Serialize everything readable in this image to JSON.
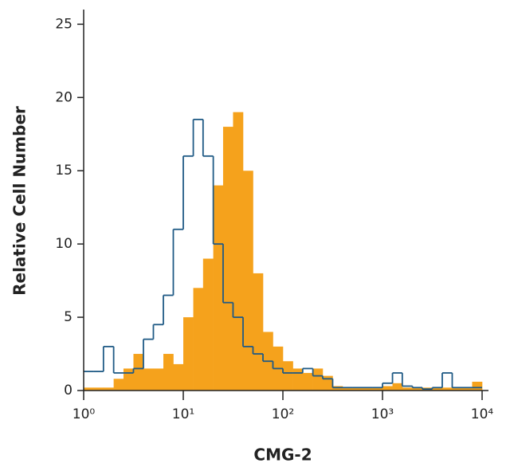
{
  "chart_data": {
    "type": "histogram",
    "x_label": "CMG-2",
    "y_label": "Relative Cell Number",
    "x_log": true,
    "xlim": [
      1,
      10000
    ],
    "ylim": [
      0,
      26
    ],
    "xticks": [
      {
        "value": 1,
        "label": "10⁰"
      },
      {
        "value": 10,
        "label": "10¹"
      },
      {
        "value": 100,
        "label": "10²"
      },
      {
        "value": 1000,
        "label": "10³"
      },
      {
        "value": 10000,
        "label": "10⁴"
      }
    ],
    "yticks": [
      0,
      5,
      10,
      15,
      20,
      25
    ],
    "bins": [
      1,
      1.26,
      1.58,
      2,
      2.51,
      3.16,
      3.98,
      5.01,
      6.31,
      7.94,
      10,
      12.6,
      15.8,
      20,
      25.1,
      31.6,
      39.8,
      50.1,
      63.1,
      79.4,
      100,
      126,
      158,
      200,
      251,
      316,
      398,
      501,
      631,
      794,
      1000,
      1260,
      1580,
      2000,
      2510,
      3160,
      3980,
      5010,
      6310,
      7940,
      10000
    ],
    "series": [
      {
        "color": "#f5a21c",
        "style": "filled",
        "values": [
          0.2,
          0.2,
          0.2,
          0.8,
          1.5,
          2.5,
          1.5,
          1.5,
          2.5,
          1.8,
          5,
          7,
          9,
          14,
          18,
          19,
          15,
          8,
          4,
          3,
          2,
          1.5,
          1.2,
          1.5,
          1,
          0.3,
          0.2,
          0.2,
          0.2,
          0.2,
          0.3,
          0.5,
          0.2,
          0.2,
          0.2,
          0.2,
          0.2,
          0.2,
          0.2,
          0.6
        ]
      },
      {
        "color": "#1f5a85",
        "style": "outline",
        "values": [
          1.3,
          1.3,
          3,
          1.2,
          1.2,
          1.5,
          3.5,
          4.5,
          6.5,
          11,
          16,
          18.5,
          16,
          10,
          6,
          5,
          3,
          2.5,
          2,
          1.5,
          1.2,
          1.2,
          1.5,
          1,
          0.8,
          0.2,
          0.2,
          0.2,
          0.2,
          0.2,
          0.5,
          1.2,
          0.3,
          0.2,
          0.1,
          0.2,
          1.2,
          0.2,
          0.2,
          0.2
        ]
      }
    ]
  }
}
